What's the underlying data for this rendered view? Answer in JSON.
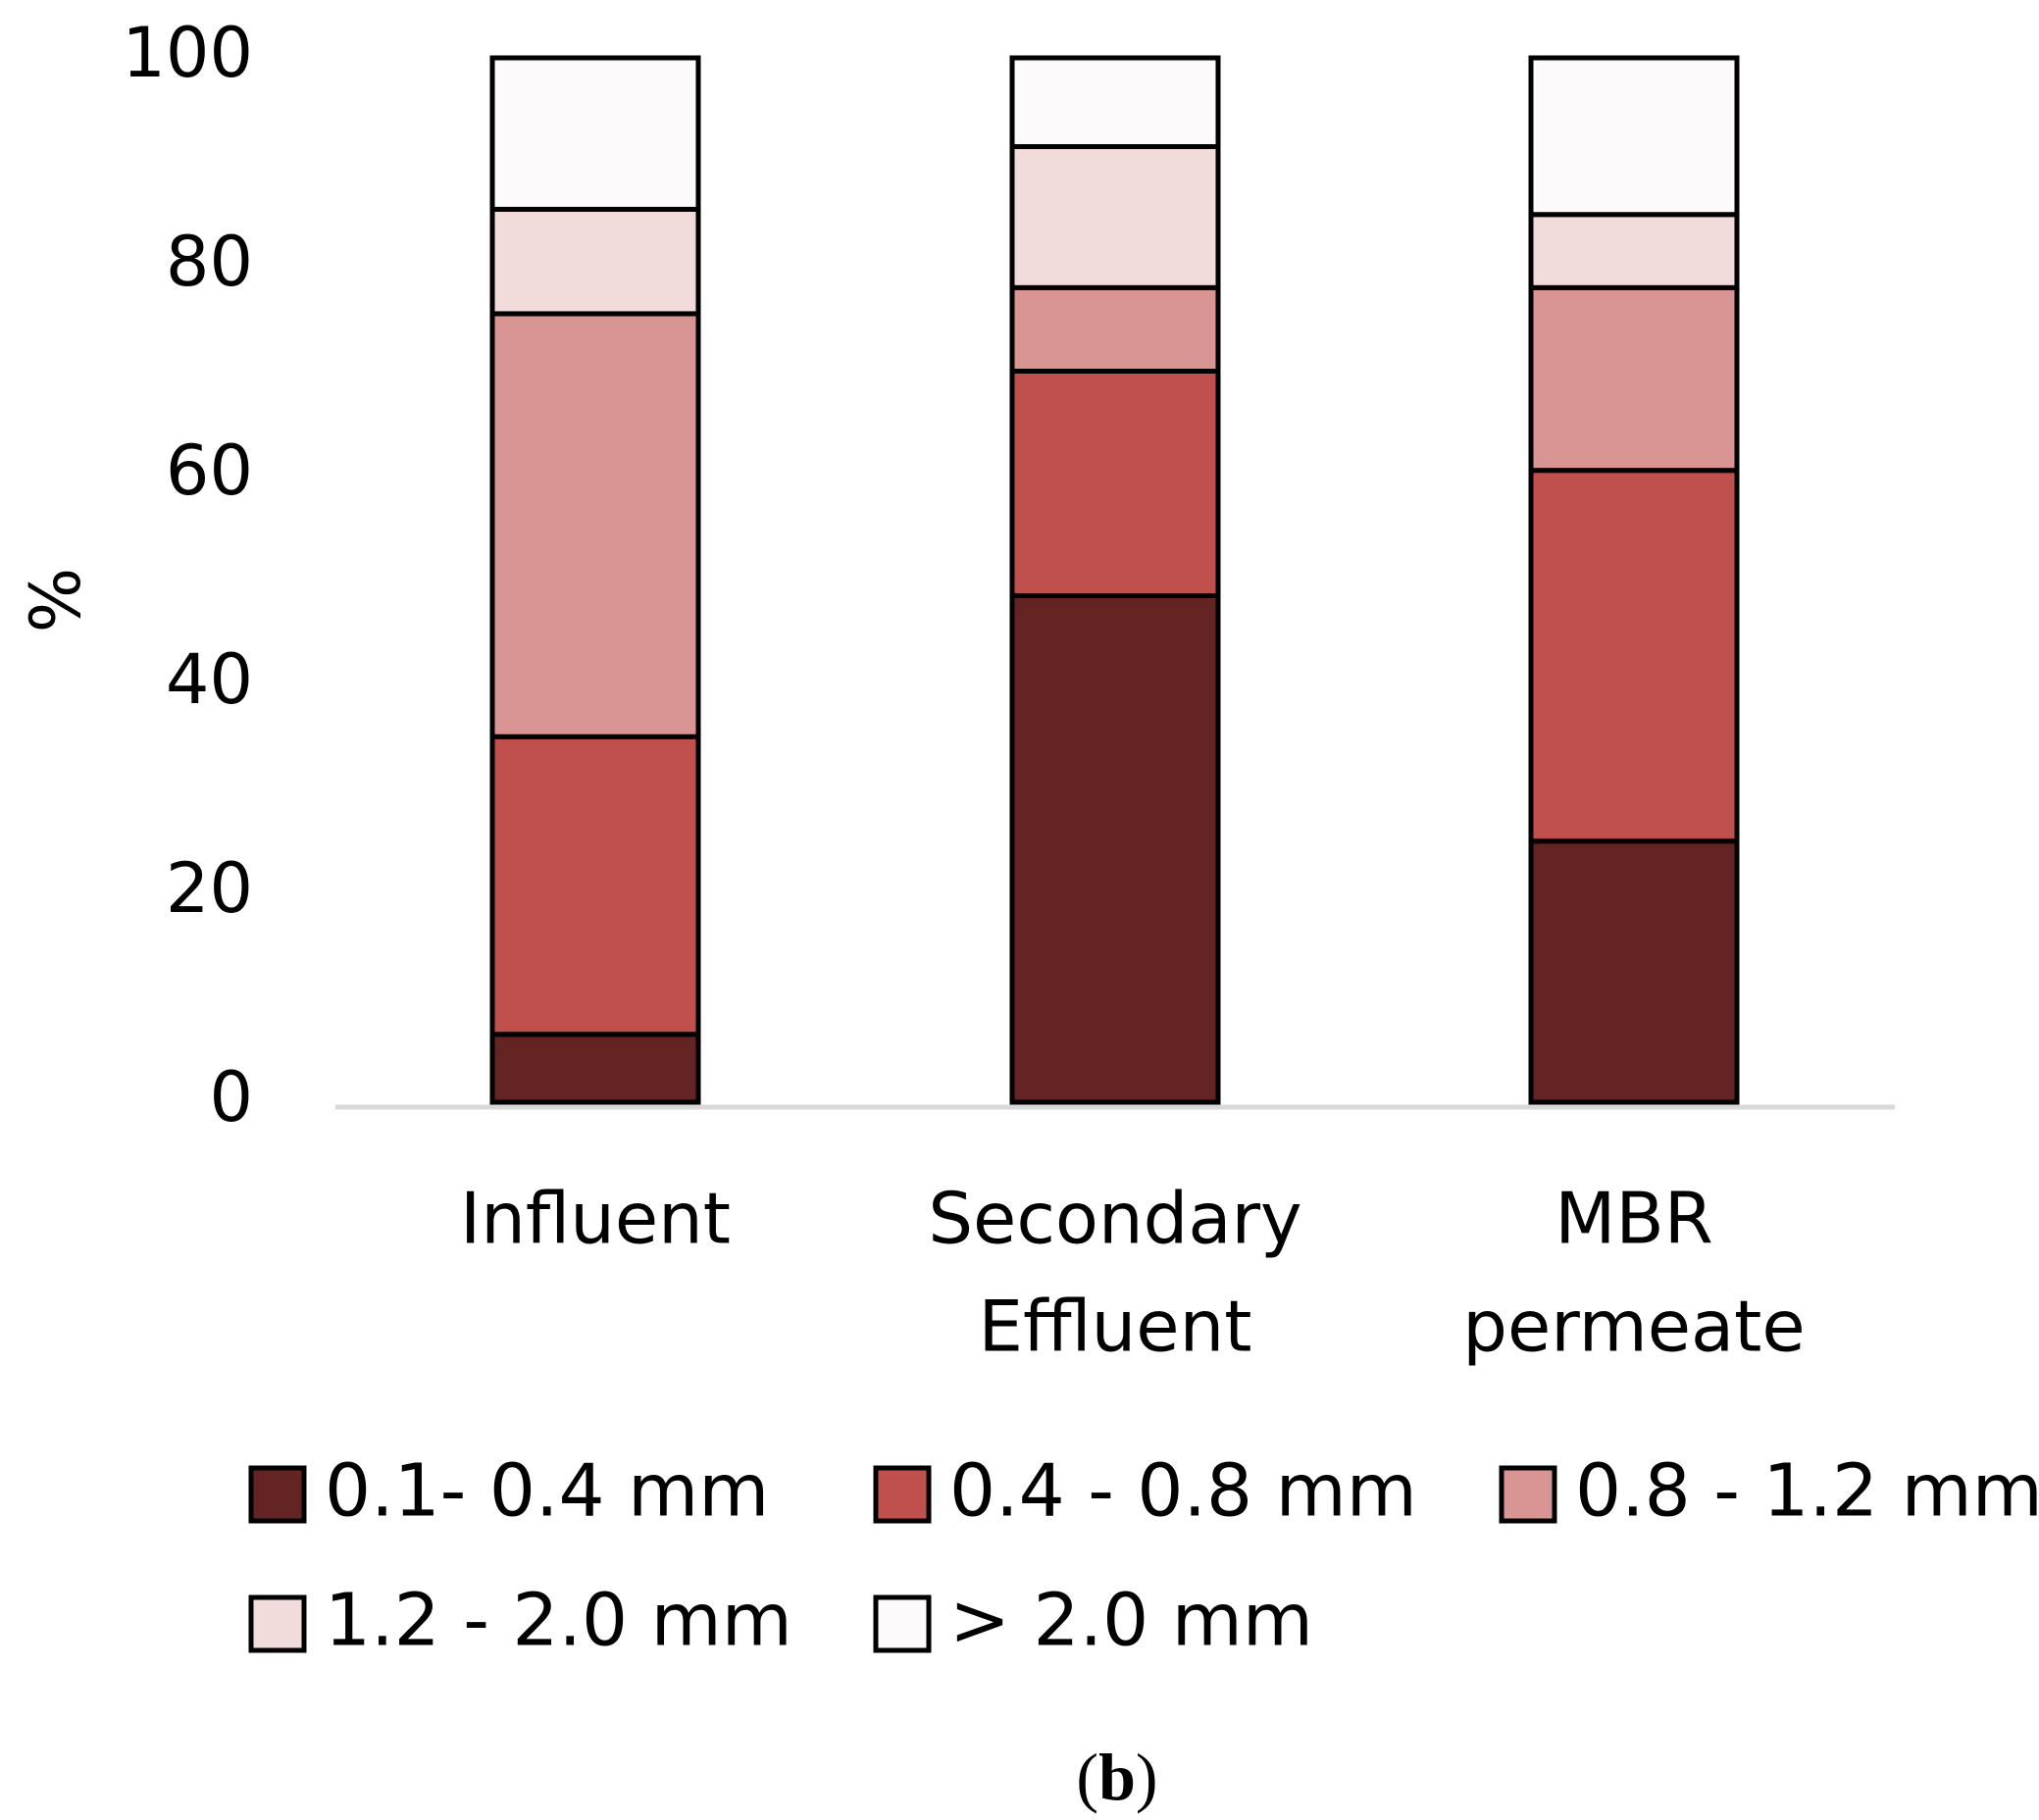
{
  "chart_data": {
    "type": "bar",
    "stacked": true,
    "ylabel": "%",
    "ylim": [
      0,
      100
    ],
    "yticks": [
      "0",
      "20",
      "40",
      "60",
      "80",
      "100"
    ],
    "grid": false,
    "legend_position": "bottom",
    "categories": [
      [
        "Influent"
      ],
      [
        "Secondary",
        "Effluent"
      ],
      [
        "MBR",
        "permeate"
      ]
    ],
    "series": [
      {
        "name": "0.1- 0.4 mm",
        "color": "#632423",
        "values": [
          6.5,
          48.5,
          25
        ]
      },
      {
        "name": "0.4 - 0.8 mm",
        "color": "#C0504D",
        "values": [
          28.5,
          21.5,
          35.5
        ]
      },
      {
        "name": "0.8 - 1.2 mm",
        "color": "#D99594",
        "values": [
          40.5,
          8,
          17.5
        ]
      },
      {
        "name": "1.2 - 2.0 mm",
        "color": "#F2DCDB",
        "values": [
          10,
          13.5,
          7
        ]
      },
      {
        "name": "> 2.0 mm",
        "color": "#FDFAFB",
        "values": [
          14.5,
          8.5,
          15
        ]
      }
    ]
  },
  "caption": {
    "open": "(",
    "letter": "b",
    "close": ")"
  }
}
